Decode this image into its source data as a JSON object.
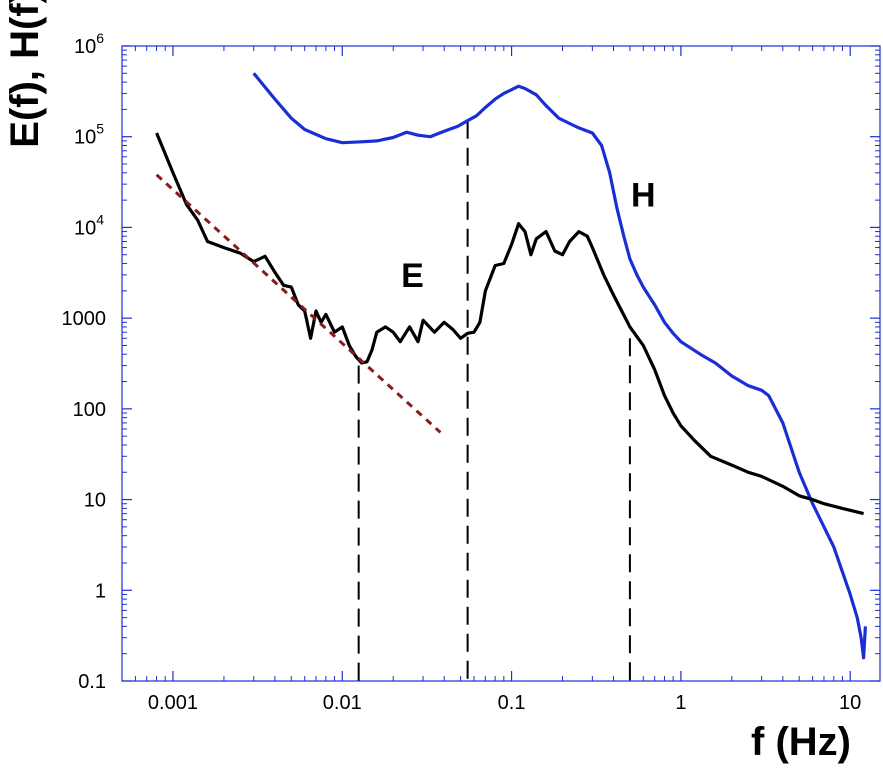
{
  "chart_data": {
    "type": "line",
    "xlabel": "f (Hz)",
    "ylabel": "E(f),  H(f)",
    "xscale": "log",
    "yscale": "log",
    "xlim": [
      0.0005,
      15
    ],
    "ylim": [
      0.1,
      1000000
    ],
    "grid": false,
    "legend": "none",
    "x_ticks": [
      {
        "value": 0.001,
        "label": "0.001"
      },
      {
        "value": 0.01,
        "label": "0.01"
      },
      {
        "value": 0.1,
        "label": "0.1"
      },
      {
        "value": 1,
        "label": "1"
      },
      {
        "value": 10,
        "label": "10"
      }
    ],
    "y_ticks": [
      {
        "value": 0.1,
        "label": "0.1",
        "base": "",
        "exp": ""
      },
      {
        "value": 1,
        "label": "1",
        "base": "",
        "exp": ""
      },
      {
        "value": 10,
        "label": "10",
        "base": "",
        "exp": ""
      },
      {
        "value": 100,
        "label": "100",
        "base": "",
        "exp": ""
      },
      {
        "value": 1000,
        "label": "1000",
        "base": "",
        "exp": ""
      },
      {
        "value": 10000,
        "label": "",
        "base": "10",
        "exp": "4"
      },
      {
        "value": 100000,
        "label": "",
        "base": "10",
        "exp": "5"
      },
      {
        "value": 1000000,
        "label": "",
        "base": "10",
        "exp": "6"
      }
    ],
    "annotations": [
      {
        "text": "E",
        "x": 0.026,
        "y": 2200
      },
      {
        "text": "H",
        "x": 0.6,
        "y": 17000
      }
    ],
    "vertical_lines": [
      {
        "x": 0.0125,
        "y_top": 300
      },
      {
        "x": 0.055,
        "y_top": 150000
      },
      {
        "x": 0.5,
        "y_top": 600
      }
    ],
    "series": [
      {
        "color": "#1a2ed6",
        "style": "solid",
        "points": [
          [
            0.003,
            500000
          ],
          [
            0.004,
            260000
          ],
          [
            0.005,
            160000
          ],
          [
            0.006,
            120000
          ],
          [
            0.008,
            95000
          ],
          [
            0.01,
            86000
          ],
          [
            0.013,
            88000
          ],
          [
            0.016,
            90000
          ],
          [
            0.02,
            98000
          ],
          [
            0.024,
            112000
          ],
          [
            0.028,
            104000
          ],
          [
            0.033,
            100000
          ],
          [
            0.04,
            115000
          ],
          [
            0.048,
            130000
          ],
          [
            0.055,
            150000
          ],
          [
            0.062,
            170000
          ],
          [
            0.07,
            210000
          ],
          [
            0.08,
            260000
          ],
          [
            0.09,
            300000
          ],
          [
            0.1,
            330000
          ],
          [
            0.11,
            360000
          ],
          [
            0.12,
            340000
          ],
          [
            0.14,
            290000
          ],
          [
            0.16,
            220000
          ],
          [
            0.19,
            160000
          ],
          [
            0.22,
            140000
          ],
          [
            0.25,
            125000
          ],
          [
            0.3,
            110000
          ],
          [
            0.34,
            80000
          ],
          [
            0.38,
            40000
          ],
          [
            0.42,
            16000
          ],
          [
            0.46,
            8000
          ],
          [
            0.5,
            4500
          ],
          [
            0.55,
            3000
          ],
          [
            0.6,
            2200
          ],
          [
            0.7,
            1400
          ],
          [
            0.8,
            900
          ],
          [
            0.9,
            680
          ],
          [
            1.0,
            550
          ],
          [
            1.3,
            400
          ],
          [
            1.6,
            320
          ],
          [
            2.0,
            230
          ],
          [
            2.5,
            180
          ],
          [
            3.0,
            160
          ],
          [
            3.3,
            140
          ],
          [
            4.0,
            70
          ],
          [
            5.0,
            20
          ],
          [
            6.0,
            9
          ],
          [
            7.0,
            5
          ],
          [
            8.0,
            3
          ],
          [
            9.0,
            1.6
          ],
          [
            10.0,
            0.9
          ],
          [
            11.0,
            0.5
          ],
          [
            11.6,
            0.3
          ],
          [
            12.0,
            0.18
          ],
          [
            12.3,
            0.4
          ]
        ]
      },
      {
        "color": "#000000",
        "style": "solid",
        "points": [
          [
            0.0008,
            110000
          ],
          [
            0.001,
            40000
          ],
          [
            0.0012,
            18000
          ],
          [
            0.0014,
            12000
          ],
          [
            0.0016,
            7000
          ],
          [
            0.002,
            6000
          ],
          [
            0.0025,
            5200
          ],
          [
            0.003,
            4200
          ],
          [
            0.0035,
            4800
          ],
          [
            0.004,
            3200
          ],
          [
            0.0045,
            2300
          ],
          [
            0.005,
            2200
          ],
          [
            0.0055,
            1400
          ],
          [
            0.006,
            1200
          ],
          [
            0.0065,
            600
          ],
          [
            0.007,
            1200
          ],
          [
            0.0075,
            900
          ],
          [
            0.008,
            1100
          ],
          [
            0.009,
            700
          ],
          [
            0.01,
            800
          ],
          [
            0.011,
            500
          ],
          [
            0.012,
            380
          ],
          [
            0.013,
            320
          ],
          [
            0.014,
            330
          ],
          [
            0.015,
            450
          ],
          [
            0.016,
            700
          ],
          [
            0.018,
            800
          ],
          [
            0.02,
            700
          ],
          [
            0.022,
            550
          ],
          [
            0.025,
            800
          ],
          [
            0.028,
            550
          ],
          [
            0.03,
            950
          ],
          [
            0.035,
            700
          ],
          [
            0.04,
            900
          ],
          [
            0.045,
            750
          ],
          [
            0.05,
            600
          ],
          [
            0.055,
            680
          ],
          [
            0.06,
            700
          ],
          [
            0.065,
            900
          ],
          [
            0.07,
            2000
          ],
          [
            0.08,
            3800
          ],
          [
            0.09,
            4000
          ],
          [
            0.1,
            6500
          ],
          [
            0.11,
            11000
          ],
          [
            0.12,
            9000
          ],
          [
            0.13,
            5000
          ],
          [
            0.14,
            7500
          ],
          [
            0.16,
            9000
          ],
          [
            0.18,
            5500
          ],
          [
            0.2,
            5000
          ],
          [
            0.22,
            7000
          ],
          [
            0.25,
            9000
          ],
          [
            0.28,
            8000
          ],
          [
            0.3,
            6000
          ],
          [
            0.35,
            3000
          ],
          [
            0.4,
            1800
          ],
          [
            0.5,
            800
          ],
          [
            0.6,
            500
          ],
          [
            0.7,
            270
          ],
          [
            0.8,
            140
          ],
          [
            0.9,
            90
          ],
          [
            1.0,
            65
          ],
          [
            1.2,
            45
          ],
          [
            1.5,
            30
          ],
          [
            2.0,
            24
          ],
          [
            2.5,
            20
          ],
          [
            3.0,
            18
          ],
          [
            4.0,
            14
          ],
          [
            5.0,
            11
          ],
          [
            6.0,
            10
          ],
          [
            7.0,
            9
          ],
          [
            9.0,
            8
          ],
          [
            12.0,
            7
          ]
        ]
      },
      {
        "color": "#8b1a1a",
        "style": "dotted",
        "points": [
          [
            0.0008,
            38000
          ],
          [
            0.038,
            55
          ]
        ]
      }
    ]
  }
}
